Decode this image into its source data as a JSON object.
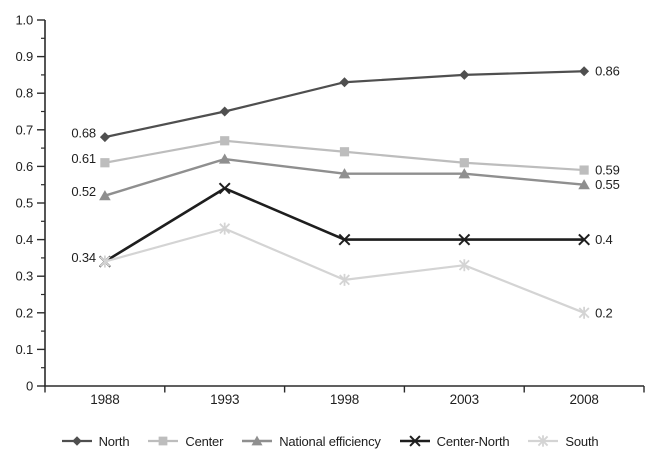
{
  "chart_data": {
    "type": "line",
    "title": "",
    "xlabel": "",
    "ylabel": "",
    "categories": [
      "1988",
      "1993",
      "1998",
      "2003",
      "2008"
    ],
    "series": [
      {
        "name": "North",
        "marker": "diamond-icon",
        "color": "#4f4f4f",
        "line_width": 2.2,
        "values": [
          0.68,
          0.75,
          0.83,
          0.85,
          0.86
        ],
        "start_label": "0.68",
        "end_label": "0.86"
      },
      {
        "name": "Center",
        "marker": "square-icon",
        "color": "#bdbdbd",
        "line_width": 2.2,
        "values": [
          0.61,
          0.67,
          0.64,
          0.61,
          0.59
        ],
        "start_label": "0.61",
        "end_label": "0.59"
      },
      {
        "name": "National efficiency",
        "marker": "triangle-icon",
        "color": "#8f8f8f",
        "line_width": 2.4,
        "values": [
          0.52,
          0.62,
          0.58,
          0.58,
          0.55
        ],
        "start_label": "0.52",
        "end_label": "0.55"
      },
      {
        "name": "Center-North",
        "marker": "x-icon",
        "color": "#1e1e1e",
        "line_width": 2.6,
        "values": [
          0.34,
          0.54,
          0.4,
          0.4,
          0.4
        ],
        "start_label": null,
        "end_label": "0.4"
      },
      {
        "name": "South",
        "marker": "asterisk-icon",
        "color": "#d4d4d4",
        "line_width": 2.2,
        "values": [
          0.34,
          0.43,
          0.29,
          0.33,
          0.2
        ],
        "start_label": "0.34",
        "end_label": "0.2"
      }
    ],
    "y_axis": {
      "min": 0,
      "max": 1.0,
      "tick_step": 0.1,
      "minor_tick_step": 0.05,
      "tick_labels": [
        "0",
        "0.1",
        "0.2",
        "0.3",
        "0.4",
        "0.5",
        "0.6",
        "0.7",
        "0.8",
        "0.9",
        "1.0"
      ]
    },
    "x_axis": {
      "tick_style": "between-categories"
    },
    "grid": false,
    "legend_position": "bottom",
    "text_color": "#1f1f1f",
    "axis_color": "#2b2b2b"
  }
}
